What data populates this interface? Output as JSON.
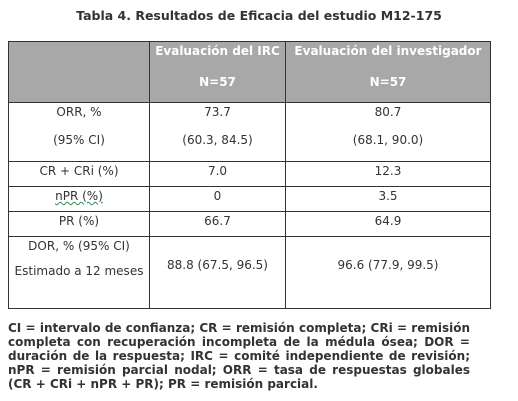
{
  "title": "Tabla 4. Resultados de Eficacia del estudio M12-175",
  "header": {
    "col1": "",
    "col2_line1": "Evaluación del IRC",
    "col2_line2": "N=57",
    "col3_line1": "Evaluación del investigador",
    "col3_line2": "N=57"
  },
  "rows": [
    {
      "label_a": "ORR, %",
      "label_b": "(95% CI)",
      "irc_a": "73.7",
      "irc_b": "(60.3, 84.5)",
      "inv_a": "80.7",
      "inv_b": "(68.1, 90.0)"
    },
    {
      "label": "CR + CRi (%)",
      "irc": "7.0",
      "inv": "12.3"
    },
    {
      "label": "nPR (%)",
      "irc": "0",
      "inv": "3.5"
    },
    {
      "label": "PR (%)",
      "irc": "66.7",
      "inv": "64.9"
    },
    {
      "label_a": "DOR, % (95% CI)",
      "label_b": "Estimado a 12 meses",
      "irc": "88.8 (67.5, 96.5)",
      "inv": "96.6 (77.9, 99.5)"
    }
  ],
  "footnote": "CI = intervalo de confianza; CR = remisión completa; CRi = remisión completa con recuperación incompleta de la médula ósea; DOR = duración de la respuesta; IRC = comité independiente de revisión; nPR = remisión parcial nodal; ORR = tasa de respuestas globales (CR + CRi + nPR + PR); PR = remisión parcial."
}
